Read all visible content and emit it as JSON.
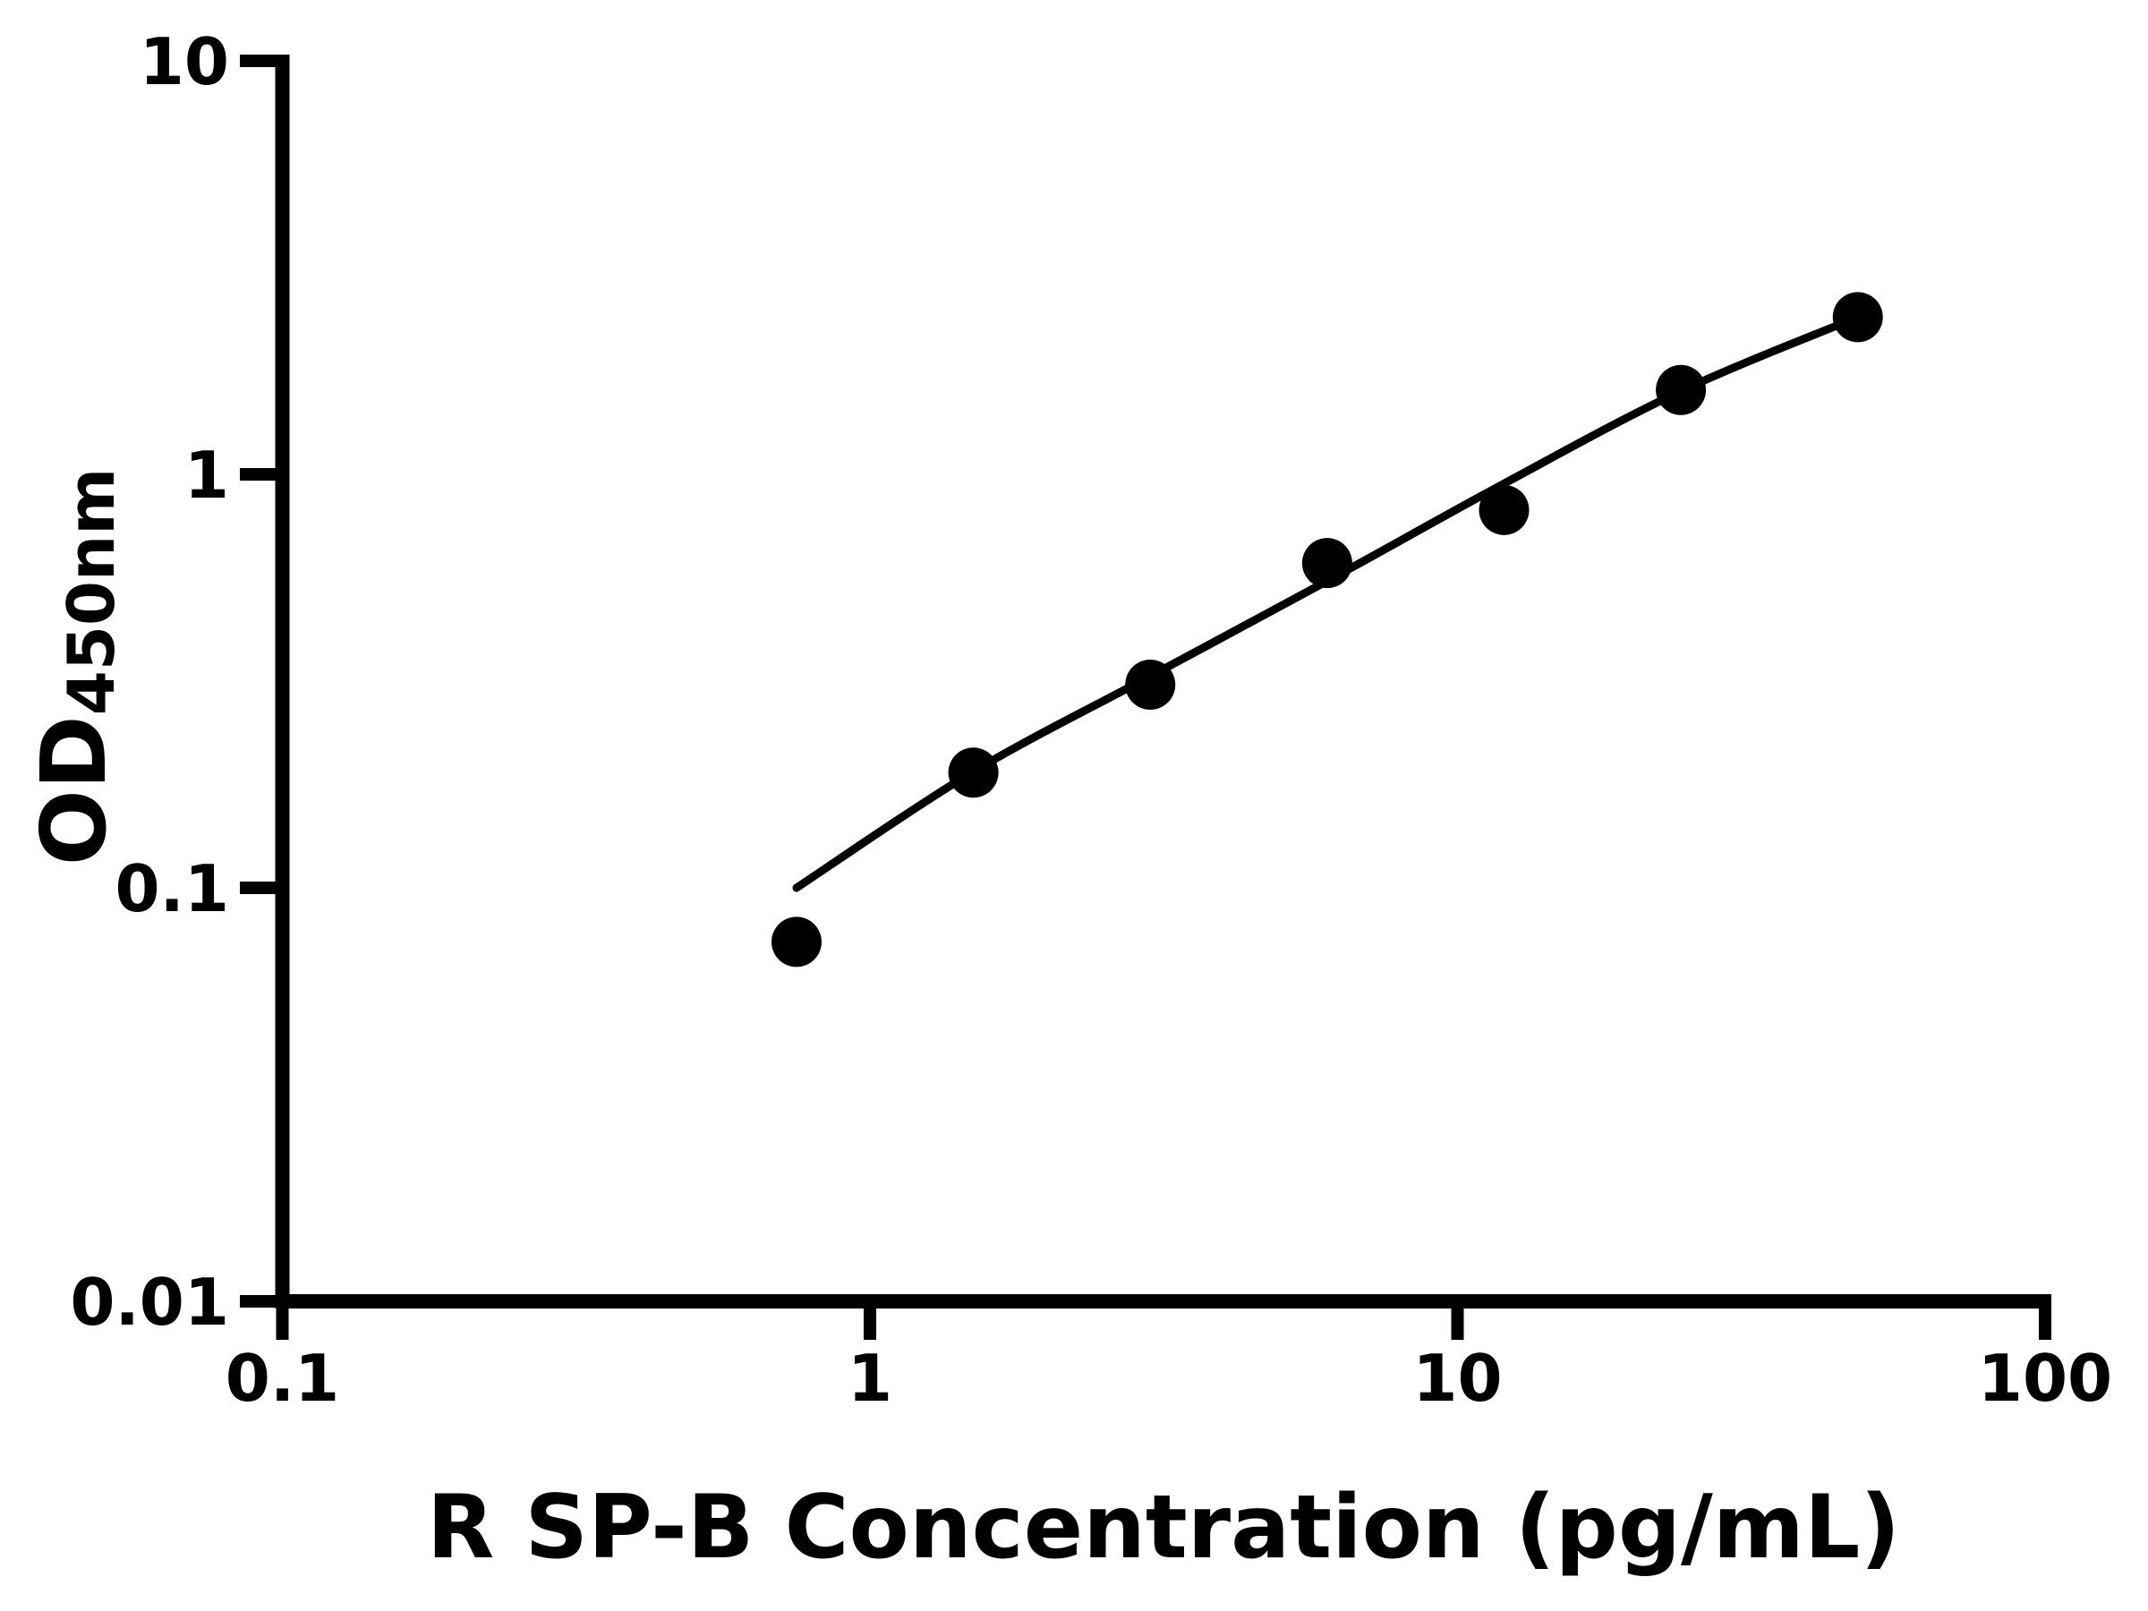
{
  "figure": {
    "background_color": "#ffffff",
    "ink_color": "#000000"
  },
  "chart_data": {
    "type": "scatter",
    "title": "",
    "xlabel": "R SP-B Concentration (pg/mL)",
    "ylabel": "OD",
    "ylabel_subscript": "450nm",
    "x_scale": "log",
    "y_scale": "log",
    "xlim": [
      0.1,
      100
    ],
    "ylim": [
      0.01,
      10
    ],
    "grid": "off",
    "legend": "none",
    "x_ticks": [
      {
        "value": 0.1,
        "label": "0.1"
      },
      {
        "value": 1,
        "label": "1"
      },
      {
        "value": 10,
        "label": "10"
      },
      {
        "value": 100,
        "label": "100"
      }
    ],
    "y_ticks": [
      {
        "value": 0.01,
        "label": "0.01"
      },
      {
        "value": 0.1,
        "label": "0.1"
      },
      {
        "value": 1,
        "label": "1"
      },
      {
        "value": 10,
        "label": "10"
      }
    ],
    "series": [
      {
        "name": "standard-points",
        "type": "scatter",
        "marker": "filled-circle",
        "color": "#000000",
        "points": [
          {
            "x": 0.75,
            "y": 0.074
          },
          {
            "x": 1.5,
            "y": 0.19
          },
          {
            "x": 3,
            "y": 0.31
          },
          {
            "x": 6,
            "y": 0.61
          },
          {
            "x": 12,
            "y": 0.82
          },
          {
            "x": 24,
            "y": 1.6
          },
          {
            "x": 48,
            "y": 2.4
          }
        ]
      },
      {
        "name": "fit-curve",
        "type": "line",
        "color": "#000000",
        "points": [
          {
            "x": 0.75,
            "y": 0.1
          },
          {
            "x": 1.5,
            "y": 0.191
          },
          {
            "x": 3,
            "y": 0.325
          },
          {
            "x": 6,
            "y": 0.552
          },
          {
            "x": 12,
            "y": 0.95
          },
          {
            "x": 24,
            "y": 1.59
          },
          {
            "x": 48,
            "y": 2.4
          }
        ]
      }
    ]
  }
}
